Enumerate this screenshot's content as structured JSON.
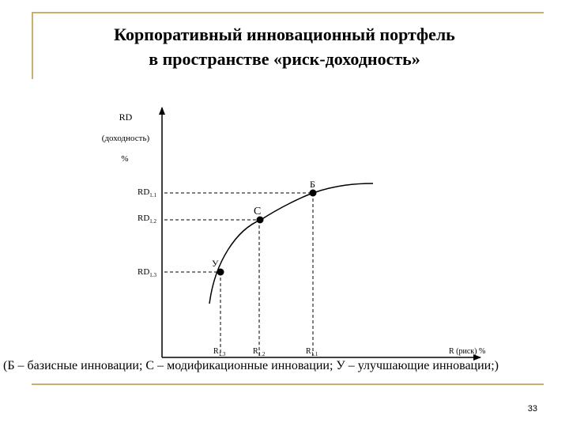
{
  "title": {
    "line1": "Корпоративный инновационный портфель",
    "line2": "в пространстве «риск-доходность»"
  },
  "diagram": {
    "y_axis": {
      "label": "RD",
      "sublabel": "(доходность)",
      "unit": "%"
    },
    "x_axis": {
      "label": "R (риск) %"
    },
    "y_levels": [
      {
        "base": "RD",
        "sub": "1.1"
      },
      {
        "base": "RD",
        "sub": "1.2"
      },
      {
        "base": "RD",
        "sub": "1.3"
      }
    ],
    "x_levels": [
      {
        "base": "R",
        "sub": "1.3"
      },
      {
        "base": "R",
        "sub": "1.2"
      },
      {
        "base": "R",
        "sub": "1.1"
      }
    ],
    "points": [
      {
        "label": "Б"
      },
      {
        "label": "С"
      },
      {
        "label": "У"
      }
    ]
  },
  "caption": "(Б – базисные инновации; С – модификационные инновации; У – улучшающие инновации;)",
  "page_number": "33"
}
